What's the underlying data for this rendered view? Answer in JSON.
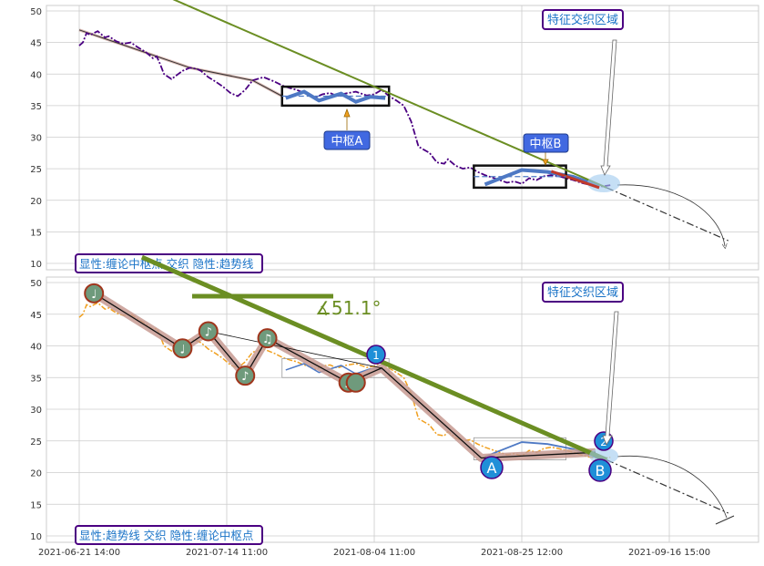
{
  "chart_data": [
    {
      "type": "line",
      "panel": "top",
      "ylim": [
        9,
        51
      ],
      "y_ticks": [
        "10",
        "15",
        "20",
        "25",
        "30",
        "35",
        "40",
        "45",
        "50"
      ],
      "grid": true,
      "price_series": {
        "color": "#4b0082",
        "style": "dash-dot",
        "x": [
          0,
          1,
          2,
          3,
          5,
          7,
          8,
          10,
          12,
          14,
          16,
          18,
          20,
          21,
          22,
          23,
          25,
          28,
          30,
          32,
          33,
          35,
          37,
          39,
          41,
          43,
          45,
          47,
          50,
          53,
          55,
          57,
          59,
          61,
          63,
          64,
          66,
          68,
          70,
          72,
          75,
          78,
          80,
          82,
          84,
          86,
          88,
          90,
          92,
          95,
          97,
          99,
          100,
          102,
          104,
          106,
          108,
          110,
          112,
          114,
          116,
          118,
          120,
          122,
          124,
          126,
          128,
          130,
          132,
          134,
          136,
          138,
          140,
          142,
          144
        ],
        "y": [
          44.5,
          45,
          46.5,
          46.2,
          46.8,
          45.8,
          46,
          45.2,
          44.8,
          45,
          44.2,
          43.5,
          42.5,
          42.8,
          41.5,
          40,
          39.2,
          40.5,
          41,
          40.8,
          40.5,
          39.5,
          38.8,
          38,
          37,
          36.5,
          37.5,
          39,
          39.5,
          38.8,
          38.2,
          37.8,
          37.5,
          37,
          36.6,
          36.3,
          36.8,
          37,
          36.5,
          36.9,
          37.2,
          36.6,
          36.8,
          37.5,
          36.5,
          35.8,
          35,
          32.5,
          28.5,
          27.5,
          26,
          25.8,
          26.5,
          25.5,
          25,
          25.2,
          24.5,
          24,
          23.6,
          23.2,
          22.8,
          23,
          22.6,
          23.5,
          23.2,
          23.8,
          24,
          23.8,
          23.5,
          23.2,
          22.8,
          22.5,
          22.3,
          22.2,
          22.4
        ]
      },
      "stroke_points": {
        "x": [
          0,
          30,
          47,
          55
        ],
        "y": [
          47,
          41,
          39,
          36.5
        ]
      },
      "center_segments": [
        {
          "x": [
            56,
            61,
            65,
            71,
            75,
            79,
            83
          ],
          "y": [
            36.2,
            37.2,
            35.8,
            36.9,
            35.6,
            36.4,
            36.2
          ],
          "color": "#4e79c4"
        },
        {
          "x": [
            110,
            120,
            127,
            134,
            141
          ],
          "y": [
            22.5,
            24.8,
            24.5,
            23.7,
            22.2
          ],
          "color": "#4e79c4"
        }
      ],
      "center_boxes": [
        {
          "x0": 55,
          "x1": 84,
          "y0": 35,
          "y1": 38
        },
        {
          "x0": 107,
          "x1": 132,
          "y0": 22,
          "y1": 25.5
        }
      ],
      "trendline": {
        "x": [
          17,
          143
        ],
        "y": [
          54,
          22
        ],
        "color": "#6b8e23"
      },
      "projection": {
        "x": [
          143,
          176
        ],
        "y": [
          22,
          13.6
        ]
      },
      "labels": {
        "center_a": "中枢A",
        "center_b": "中枢B",
        "region": "特征交织区域",
        "legend": "显性:缠论中枢点 交织 隐性:趋势线"
      }
    },
    {
      "type": "line",
      "panel": "bottom",
      "ylim": [
        9,
        51
      ],
      "y_ticks": [
        "10",
        "15",
        "20",
        "25",
        "30",
        "35",
        "40",
        "45",
        "50"
      ],
      "grid": true,
      "x_ticks": [
        "2021-06-21 14:00",
        "2021-07-14 11:00",
        "2021-08-04 11:00",
        "2021-08-25 12:00",
        "2021-09-16 15:00"
      ],
      "price_series_color": "#f0a020",
      "pivot_points": {
        "x": [
          4,
          28,
          35,
          45,
          51,
          73,
          82,
          109,
          140
        ],
        "y": [
          48.3,
          39.6,
          42.3,
          35.3,
          41.2,
          34.2,
          36.5,
          22.3,
          23.2
        ],
        "glyphs": [
          "♩",
          "♩",
          "♪",
          "♪",
          "♫",
          "♫"
        ]
      },
      "trendline": {
        "x": [
          17,
          143
        ],
        "y": [
          54,
          22
        ],
        "color": "#6b8e23"
      },
      "angle_label": "∡51.1°",
      "markers": {
        "one": "1",
        "two": "2",
        "a": "A",
        "b": "B"
      },
      "labels": {
        "region": "特征交织区域",
        "legend": "显性:趋势线 交织 隐性:缠论中枢点"
      }
    }
  ]
}
